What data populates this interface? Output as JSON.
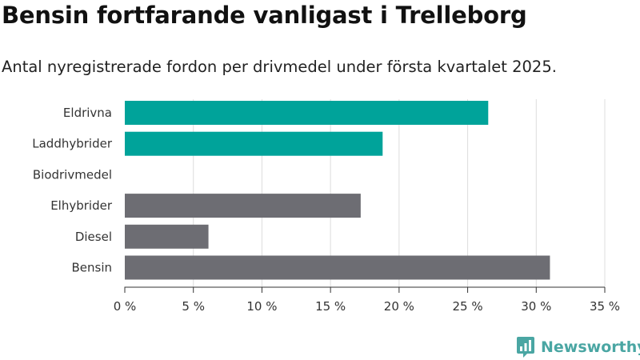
{
  "header": {
    "title": "Bensin fortfarande vanligast i Trelleborg",
    "subtitle": "Antal nyregistrerade fordon per drivmedel under första kvartalet 2025."
  },
  "brand": {
    "name": "Newsworthy",
    "icon": "newsworthy-logo-icon",
    "color": "#4aa6a3"
  },
  "chart_data": {
    "type": "bar",
    "orientation": "horizontal",
    "title": "Bensin fortfarande vanligast i Trelleborg",
    "subtitle": "Antal nyregistrerade fordon per drivmedel under första kvartalet 2025.",
    "categories": [
      "Eldrivna",
      "Laddhybrider",
      "Biodrivmedel",
      "Elhybrider",
      "Diesel",
      "Bensin"
    ],
    "values": [
      26.5,
      18.8,
      0,
      17.2,
      6.1,
      31.0
    ],
    "colors": [
      "#00a39a",
      "#00a39a",
      "#00a39a",
      "#6d6d73",
      "#6d6d73",
      "#6d6d73"
    ],
    "xlim": [
      0,
      35
    ],
    "xticks": [
      0,
      5,
      10,
      15,
      20,
      25,
      30,
      35
    ],
    "xtick_labels": [
      "0 %",
      "5 %",
      "10 %",
      "15 %",
      "20 %",
      "25 %",
      "30 %",
      "35 %"
    ],
    "grid": "vertical",
    "xlabel": "",
    "ylabel": ""
  }
}
